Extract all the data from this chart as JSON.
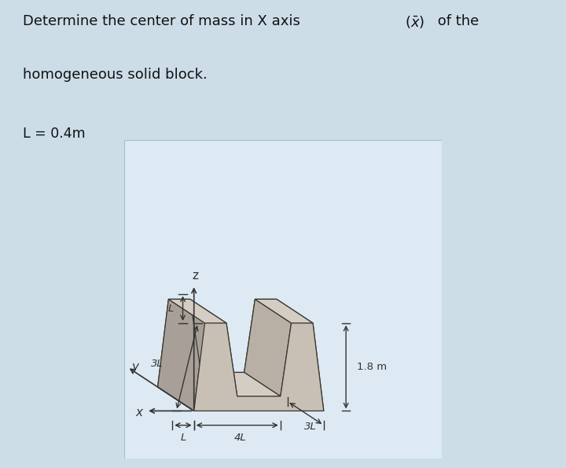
{
  "bg_color": "#ccdde8",
  "inner_bg": "#ddeaf3",
  "shape_face_front_left": "#b8b0a4",
  "shape_face_front_right": "#c8c0b4",
  "shape_face_top": "#d4cdc4",
  "shape_face_back": "#ccc4b8",
  "shape_face_inner": "#a8a098",
  "shape_face_bottom_inner": "#beb8b0",
  "shape_edge_color": "#3a3530",
  "dim_line_color": "#333333",
  "axis_color": "#333333",
  "title1": "Determine the center of mass in X axis ",
  "title_xbar": "($\\bar{x}$)",
  "title1end": " of the",
  "title2": "homogeneous solid block.",
  "L_label": "L = 0.4m",
  "dim_3L_height": "3L",
  "dim_L_top": "L",
  "dim_4L": "4L",
  "dim_L_side": "L",
  "dim_3L_depth": "3L",
  "dim_18m": "1.8 m",
  "axis_x": "x",
  "axis_y": "y",
  "axis_z": "z"
}
